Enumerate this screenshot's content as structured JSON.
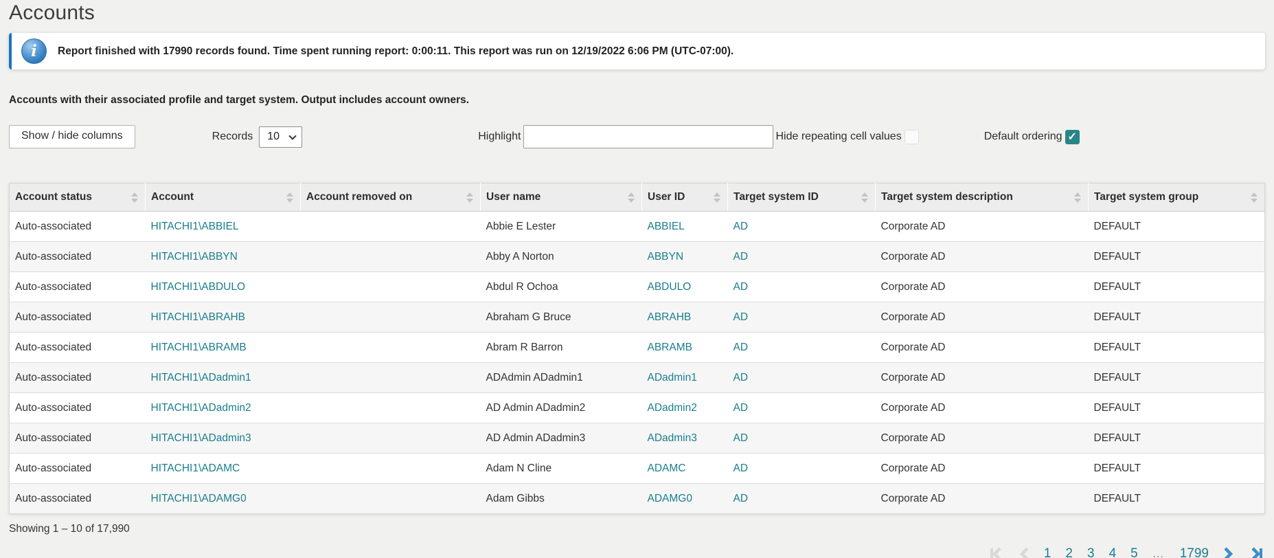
{
  "page": {
    "title": "Accounts"
  },
  "banner": {
    "icon": "info-icon",
    "text": "Report finished with 17990 records found. Time spent running report: 0:00:11. This report was run on 12/19/2022 6:06 PM (UTC-07:00)."
  },
  "subtitle": "Accounts with their associated profile and target system. Output includes account owners.",
  "toolbar": {
    "show_hide_label": "Show / hide columns",
    "records_label": "Records",
    "records_value": "10",
    "highlight_label": "Highlight",
    "highlight_value": "",
    "hide_repeating_label": "Hide repeating cell values",
    "hide_repeating_checked": false,
    "default_ordering_label": "Default ordering",
    "default_ordering_checked": true
  },
  "table": {
    "columns": [
      "Account status",
      "Account",
      "Account removed on",
      "User name",
      "User ID",
      "Target system ID",
      "Target system description",
      "Target system group"
    ],
    "rows": [
      {
        "account_status": "Auto-associated",
        "account": "HITACHI1\\ABBIEL",
        "account_removed_on": "",
        "user_name": "Abbie E Lester",
        "user_id": "ABBIEL",
        "target_system_id": "AD",
        "target_system_description": "Corporate AD",
        "target_system_group": "DEFAULT"
      },
      {
        "account_status": "Auto-associated",
        "account": "HITACHI1\\ABBYN",
        "account_removed_on": "",
        "user_name": "Abby A Norton",
        "user_id": "ABBYN",
        "target_system_id": "AD",
        "target_system_description": "Corporate AD",
        "target_system_group": "DEFAULT"
      },
      {
        "account_status": "Auto-associated",
        "account": "HITACHI1\\ABDULO",
        "account_removed_on": "",
        "user_name": "Abdul R Ochoa",
        "user_id": "ABDULO",
        "target_system_id": "AD",
        "target_system_description": "Corporate AD",
        "target_system_group": "DEFAULT"
      },
      {
        "account_status": "Auto-associated",
        "account": "HITACHI1\\ABRAHB",
        "account_removed_on": "",
        "user_name": "Abraham G Bruce",
        "user_id": "ABRAHB",
        "target_system_id": "AD",
        "target_system_description": "Corporate AD",
        "target_system_group": "DEFAULT"
      },
      {
        "account_status": "Auto-associated",
        "account": "HITACHI1\\ABRAMB",
        "account_removed_on": "",
        "user_name": "Abram R Barron",
        "user_id": "ABRAMB",
        "target_system_id": "AD",
        "target_system_description": "Corporate AD",
        "target_system_group": "DEFAULT"
      },
      {
        "account_status": "Auto-associated",
        "account": "HITACHI1\\ADadmin1",
        "account_removed_on": "",
        "user_name": "ADAdmin ADadmin1",
        "user_id": "ADadmin1",
        "target_system_id": "AD",
        "target_system_description": "Corporate AD",
        "target_system_group": "DEFAULT"
      },
      {
        "account_status": "Auto-associated",
        "account": "HITACHI1\\ADadmin2",
        "account_removed_on": "",
        "user_name": "AD Admin ADadmin2",
        "user_id": "ADadmin2",
        "target_system_id": "AD",
        "target_system_description": "Corporate AD",
        "target_system_group": "DEFAULT"
      },
      {
        "account_status": "Auto-associated",
        "account": "HITACHI1\\ADadmin3",
        "account_removed_on": "",
        "user_name": "AD Admin ADadmin3",
        "user_id": "ADadmin3",
        "target_system_id": "AD",
        "target_system_description": "Corporate AD",
        "target_system_group": "DEFAULT"
      },
      {
        "account_status": "Auto-associated",
        "account": "HITACHI1\\ADAMC",
        "account_removed_on": "",
        "user_name": "Adam N Cline",
        "user_id": "ADAMC",
        "target_system_id": "AD",
        "target_system_description": "Corporate AD",
        "target_system_group": "DEFAULT"
      },
      {
        "account_status": "Auto-associated",
        "account": "HITACHI1\\ADAMG0",
        "account_removed_on": "",
        "user_name": "Adam Gibbs",
        "user_id": "ADAMG0",
        "target_system_id": "AD",
        "target_system_description": "Corporate AD",
        "target_system_group": "DEFAULT"
      }
    ]
  },
  "footer": {
    "showing_text": "Showing 1 – 10 of 17,990"
  },
  "pagination": {
    "pages": [
      "1",
      "2",
      "3",
      "4",
      "5"
    ],
    "ellipsis": "…",
    "last_page": "1799",
    "current_page": "1"
  },
  "colors": {
    "link_teal": "#1a7e8c",
    "accent_blue": "#1b75bc",
    "checkbox_teal": "#278786",
    "pager_blue": "#3d8ec6",
    "pager_disabled": "#d9d9d9"
  }
}
